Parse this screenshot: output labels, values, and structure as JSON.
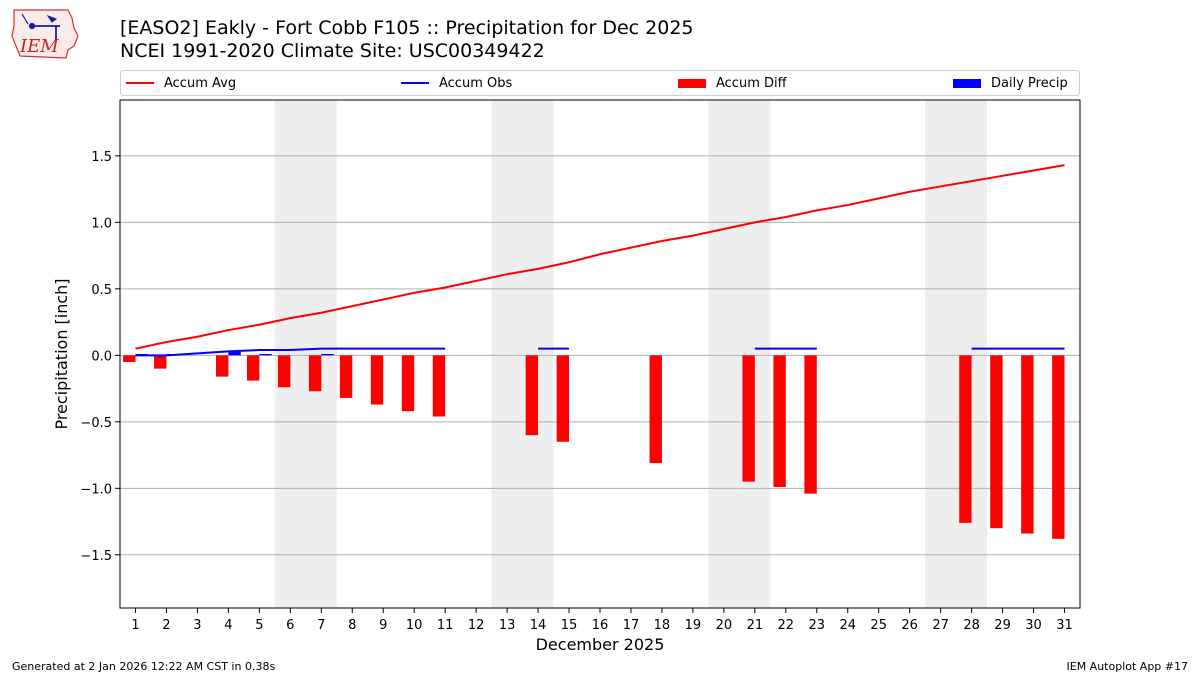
{
  "header": {
    "title_line1": "[EASO2] Eakly - Fort Cobb F105 :: Precipitation for Dec 2025",
    "title_line2": "NCEI 1991-2020 Climate Site: USC00349422",
    "logo_text": "IEM"
  },
  "legend": {
    "items": [
      {
        "label": "Accum Avg",
        "color": "#ff0000",
        "kind": "line"
      },
      {
        "label": "Accum Obs",
        "color": "#0000ff",
        "kind": "line"
      },
      {
        "label": "Accum Diff",
        "color": "#ff0000",
        "kind": "box"
      },
      {
        "label": "Daily Precip",
        "color": "#0000ff",
        "kind": "box"
      }
    ]
  },
  "footer": {
    "left": "Generated at 2 Jan 2026 12:22 AM CST in 0.38s",
    "right": "IEM Autoplot App #17"
  },
  "chart_data": {
    "type": "bar",
    "title": "[EASO2] Eakly - Fort Cobb F105 :: Precipitation for Dec 2025",
    "xlabel": "December 2025",
    "ylabel": "Precipitation [inch]",
    "xlim": [
      0.5,
      31.5
    ],
    "ylim": [
      -1.9,
      1.92
    ],
    "yticks": [
      -1.5,
      -1.0,
      -0.5,
      0.0,
      0.5,
      1.0,
      1.5
    ],
    "ytick_labels": [
      "−1.5",
      "−1.0",
      "−0.5",
      "0.0",
      "0.5",
      "1.0",
      "1.5"
    ],
    "xticks": [
      1,
      2,
      3,
      4,
      5,
      6,
      7,
      8,
      9,
      10,
      11,
      12,
      13,
      14,
      15,
      16,
      17,
      18,
      19,
      20,
      21,
      22,
      23,
      24,
      25,
      26,
      27,
      28,
      29,
      30,
      31
    ],
    "grid": "y",
    "weekend_shading": [
      [
        6,
        7
      ],
      [
        13,
        14
      ],
      [
        20,
        21
      ],
      [
        27,
        28
      ]
    ],
    "shade_color": "#eeeeee",
    "series": [
      {
        "name": "Accum Avg",
        "type": "line",
        "color": "#ff0000",
        "x": [
          1,
          2,
          3,
          4,
          5,
          6,
          7,
          8,
          9,
          10,
          11,
          12,
          13,
          14,
          15,
          16,
          17,
          18,
          19,
          20,
          21,
          22,
          23,
          24,
          25,
          26,
          27,
          28,
          29,
          30,
          31
        ],
        "values": [
          0.05,
          0.1,
          0.14,
          0.19,
          0.23,
          0.28,
          0.32,
          0.37,
          0.42,
          0.47,
          0.51,
          0.56,
          0.61,
          0.65,
          0.7,
          0.76,
          0.81,
          0.86,
          0.9,
          0.95,
          1.0,
          1.04,
          1.09,
          1.13,
          1.18,
          1.23,
          1.27,
          1.31,
          1.35,
          1.39,
          1.43
        ]
      },
      {
        "name": "Accum Obs",
        "type": "line",
        "color": "#0000ff",
        "x": [
          1,
          2,
          4,
          5,
          6,
          7,
          8,
          9,
          10,
          11
        ],
        "values": [
          0.0,
          0.0,
          0.03,
          0.04,
          0.04,
          0.05,
          0.05,
          0.05,
          0.05,
          0.05
        ]
      },
      {
        "name": "Accum Obs",
        "type": "line",
        "color": "#0000ff",
        "x": [
          14,
          15
        ],
        "values": [
          0.05,
          0.05
        ]
      },
      {
        "name": "Accum Obs",
        "type": "line",
        "color": "#0000ff",
        "x": [
          21,
          22,
          23
        ],
        "values": [
          0.05,
          0.05,
          0.05
        ]
      },
      {
        "name": "Accum Obs",
        "type": "line",
        "color": "#0000ff",
        "x": [
          28,
          29,
          30,
          31
        ],
        "values": [
          0.05,
          0.05,
          0.05,
          0.05
        ]
      },
      {
        "name": "Accum Diff",
        "type": "bar",
        "color": "#ff0000",
        "x": [
          1,
          2,
          4,
          5,
          6,
          7,
          8,
          9,
          10,
          11,
          14,
          15,
          18,
          21,
          22,
          23,
          28,
          29,
          30,
          31
        ],
        "values": [
          -0.05,
          -0.1,
          -0.16,
          -0.19,
          -0.24,
          -0.27,
          -0.32,
          -0.37,
          -0.42,
          -0.46,
          -0.6,
          -0.65,
          -0.81,
          -0.95,
          -0.99,
          -1.04,
          -1.26,
          -1.3,
          -1.34,
          -1.38
        ]
      },
      {
        "name": "Daily Precip",
        "type": "bar",
        "color": "#0000ff",
        "x": [
          1,
          2,
          4,
          5,
          7
        ],
        "values": [
          0.01,
          0.01,
          0.03,
          0.01,
          0.01
        ]
      }
    ]
  }
}
